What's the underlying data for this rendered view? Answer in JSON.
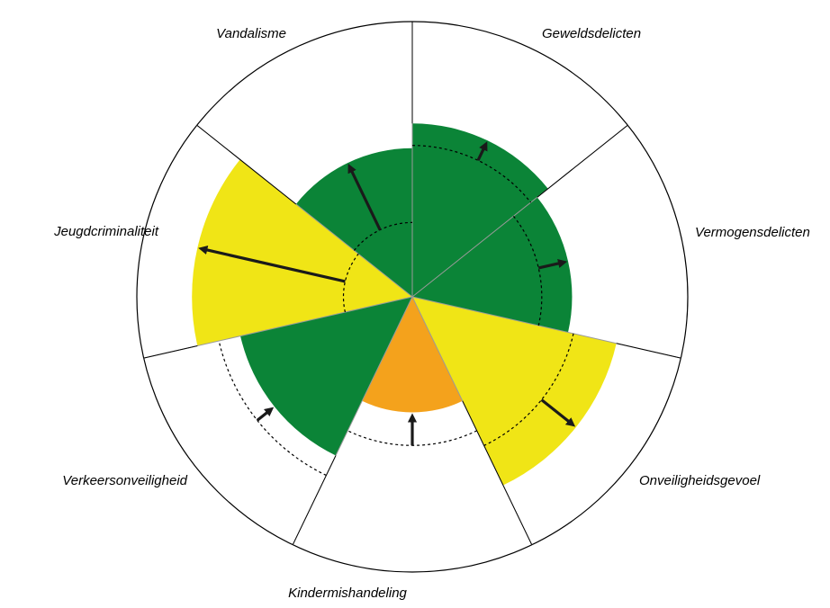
{
  "chart_data": {
    "type": "polar-area",
    "title": "",
    "grid": false,
    "legend": "none",
    "colors": {
      "green": "#0b8437",
      "yellow": "#f0e516",
      "orange": "#f4a21c",
      "outline": "#000000",
      "divider": "#9a9a9a",
      "arrow": "#1a1a1a"
    },
    "categories": [
      {
        "label": "Geweldsdelicten",
        "value": 0.63,
        "reference": 0.55,
        "trend": "up",
        "color": "green"
      },
      {
        "label": "Vermogensdelicten",
        "value": 0.58,
        "reference": 0.47,
        "trend": "up",
        "color": "green"
      },
      {
        "label": "Onveiligheidsgevoel",
        "value": 0.76,
        "reference": 0.6,
        "trend": "up",
        "color": "yellow"
      },
      {
        "label": "Kindermishandeling",
        "value": 0.42,
        "reference": 0.54,
        "trend": "down",
        "color": "orange"
      },
      {
        "label": "Verkeersonveiligheid",
        "value": 0.64,
        "reference": 0.72,
        "trend": "down",
        "color": "green"
      },
      {
        "label": "Jeugdcriminaliteit",
        "value": 0.8,
        "reference": 0.25,
        "trend": "up",
        "color": "yellow"
      },
      {
        "label": "Vandalisme",
        "value": 0.54,
        "reference": 0.27,
        "trend": "up",
        "color": "green"
      }
    ]
  }
}
